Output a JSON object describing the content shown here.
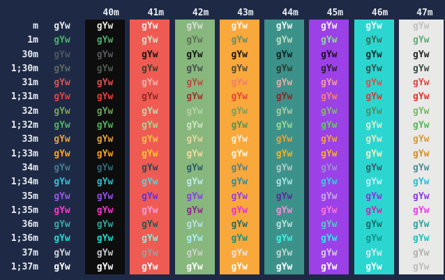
{
  "terminal": {
    "cell_text": "gYw",
    "palette": {
      "terminal_bg": "#1e2a45",
      "header_fg": "#e8ebf0",
      "label_fg": "#e8ebf0",
      "column_bgs": [
        "#0d0d0d",
        "#ef5b53",
        "#87b77d",
        "#f9a83c",
        "#3c928a",
        "#9c40e8",
        "#2cd6d0",
        "#e9e9e7"
      ]
    },
    "columns": {
      "header": [
        "40m",
        "41m",
        "42m",
        "43m",
        "44m",
        "45m",
        "46m",
        "47m"
      ]
    },
    "rows": [
      {
        "label": "m",
        "bold": false,
        "fg": [
          "#e9ebee",
          "#e9e9e9",
          "#f6efed",
          "#dadfd5",
          "#fdf4e5",
          "#edf4f2",
          "#f3edfa",
          "#ecfbfa",
          "#c2c3c1"
        ]
      },
      {
        "label": "1m",
        "bold": true,
        "fg": [
          "#4cb36c",
          "#52ad6c",
          "#cfe2c9",
          "#5d7055",
          "#6d8a60",
          "#bedec0",
          "#8fd88f",
          "#3f6a58",
          "#61a878"
        ]
      },
      {
        "label": "30m",
        "bold": false,
        "fg": [
          "#50565f",
          "#58595b",
          "#161616",
          "#111511",
          "#171412",
          "#102220",
          "#1b1124",
          "#112724",
          "#232323"
        ]
      },
      {
        "label": "1;30m",
        "bold": true,
        "fg": [
          "#5d6a62",
          "#4e5a50",
          "#35402f",
          "#47524a",
          "#4c4a3c",
          "#2c3a33",
          "#272131",
          "#33524b",
          "#3c4a46"
        ]
      },
      {
        "label": "31m",
        "bold": false,
        "fg": [
          "#e2514b",
          "#dd4f4c",
          "#f3b4ad",
          "#bf4a42",
          "#f07f6c",
          "#f2a7a3",
          "#f49d94",
          "#d4524a",
          "#dd4742"
        ]
      },
      {
        "label": "1;31m",
        "bold": true,
        "fg": [
          "#f23c38",
          "#f23a35",
          "#8e2b26",
          "#a33029",
          "#e74433",
          "#8e2622",
          "#f57f70",
          "#e5342b",
          "#e5332c"
        ]
      },
      {
        "label": "32m",
        "bold": false,
        "fg": [
          "#7ba35e",
          "#71a05e",
          "#bad8ab",
          "#b3d3a4",
          "#7ba05c",
          "#a9cba0",
          "#84b671",
          "#4f8e68",
          "#77b768"
        ]
      },
      {
        "label": "1;32m",
        "bold": true,
        "fg": [
          "#55b45e",
          "#52b25b",
          "#a2d795",
          "#c9e6bb",
          "#579250",
          "#97d88f",
          "#66c95f",
          "#d9efd0",
          "#56b757"
        ]
      },
      {
        "label": "33m",
        "bold": false,
        "fg": [
          "#eba23c",
          "#e7a13b",
          "#f4c243",
          "#e6d49c",
          "#f8f0d8",
          "#efa232",
          "#f0a339",
          "#ece4c6",
          "#d79937"
        ]
      },
      {
        "label": "1;33m",
        "bold": true,
        "fg": [
          "#ffa41d",
          "#ffa519",
          "#fec92e",
          "#f0dc9e",
          "#fdf6e0",
          "#feb11c",
          "#f8b01f",
          "#f6eec2",
          "#d28f26"
        ]
      },
      {
        "label": "34m",
        "bold": false,
        "fg": [
          "#437d90",
          "#31697a",
          "#274a52",
          "#2d5a62",
          "#5b7f7e",
          "#b2cbca",
          "#998fd0",
          "#3a5c62",
          "#4c8b92"
        ]
      },
      {
        "label": "1;34m",
        "bold": true,
        "fg": [
          "#34c2d7",
          "#30bfcf",
          "#4fd6e0",
          "#bfe9ea",
          "#2d8f9d",
          "#a5e2e8",
          "#38c8e4",
          "#c6edf2",
          "#2ac0d4"
        ]
      },
      {
        "label": "35m",
        "bold": false,
        "fg": [
          "#9a55ea",
          "#9350e8",
          "#5c35d4",
          "#8a40e0",
          "#8f40e4",
          "#5c2a9e",
          "#c3aae8",
          "#8836e0",
          "#8838e4"
        ]
      },
      {
        "label": "1;35m",
        "bold": true,
        "fg": [
          "#ff36cf",
          "#fb32cb",
          "#f69ede",
          "#93278f",
          "#e234d2",
          "#fb8ad8",
          "#fb74da",
          "#c42bb4",
          "#ef3ae9"
        ]
      },
      {
        "label": "36m",
        "bold": false,
        "fg": [
          "#36aaa4",
          "#33a69e",
          "#1e5c56",
          "#b8e0da",
          "#2b6a61",
          "#b5e0da",
          "#53c8c2",
          "#1c6b64",
          "#2aa69e"
        ]
      },
      {
        "label": "1;36m",
        "bold": true,
        "fg": [
          "#20dcd3",
          "#19dcd2",
          "#8fe8dc",
          "#a9edf2",
          "#1b8e80",
          "#3cf2e8",
          "#30e8e0",
          "#11928a",
          "#16c5bc"
        ]
      },
      {
        "label": "37m",
        "bold": false,
        "fg": [
          "#cfd0d2",
          "#c6c7c9",
          "#9f9d9c",
          "#cdd3c9",
          "#e7e2d7",
          "#c5d6d3",
          "#d3c9e4",
          "#d5eae7",
          "#b0b0ae"
        ]
      },
      {
        "label": "1;37m",
        "bold": true,
        "fg": [
          "#fdfeff",
          "#ffffff",
          "#ffffff",
          "#fcfefa",
          "#fffdf4",
          "#ffffff",
          "#ffffff",
          "#fefffe",
          "#bdbdbb"
        ]
      }
    ]
  }
}
